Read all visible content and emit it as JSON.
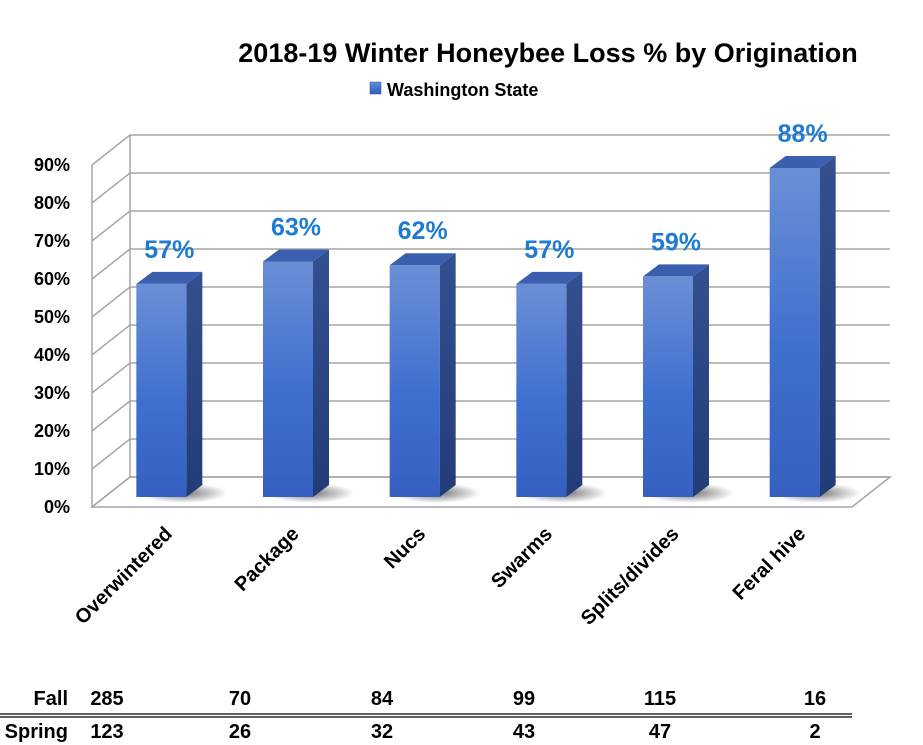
{
  "chart_data": {
    "type": "bar",
    "title": "2018-19 Winter Honeybee Loss % by Origination",
    "legend": {
      "label": "Washington State",
      "position": "top",
      "color": "#4472c4"
    },
    "categories": [
      "Overwintered",
      "Package",
      "Nucs",
      "Swarms",
      "Splits/divides",
      "Feral hive"
    ],
    "series": [
      {
        "name": "Washington State",
        "values": [
          57,
          63,
          62,
          57,
          59,
          88
        ],
        "labels": [
          "57%",
          "63%",
          "62%",
          "57%",
          "59%",
          "88%"
        ]
      }
    ],
    "y_ticks": [
      "0%",
      "10%",
      "20%",
      "30%",
      "40%",
      "50%",
      "60%",
      "70%",
      "80%",
      "90%"
    ],
    "ylim": [
      0,
      90
    ],
    "grid": true,
    "table": {
      "rows": [
        {
          "label": "Fall",
          "values": [
            "285",
            "70",
            "84",
            "99",
            "115",
            "16"
          ]
        },
        {
          "label": "Spring",
          "values": [
            "123",
            "26",
            "32",
            "43",
            "47",
            "2"
          ]
        }
      ]
    },
    "colors": {
      "bar_front": "#4a78d0",
      "bar_side": "#2c4a8c",
      "bar_top": "#3a5fae",
      "data_label": "#1f7bd1"
    }
  }
}
